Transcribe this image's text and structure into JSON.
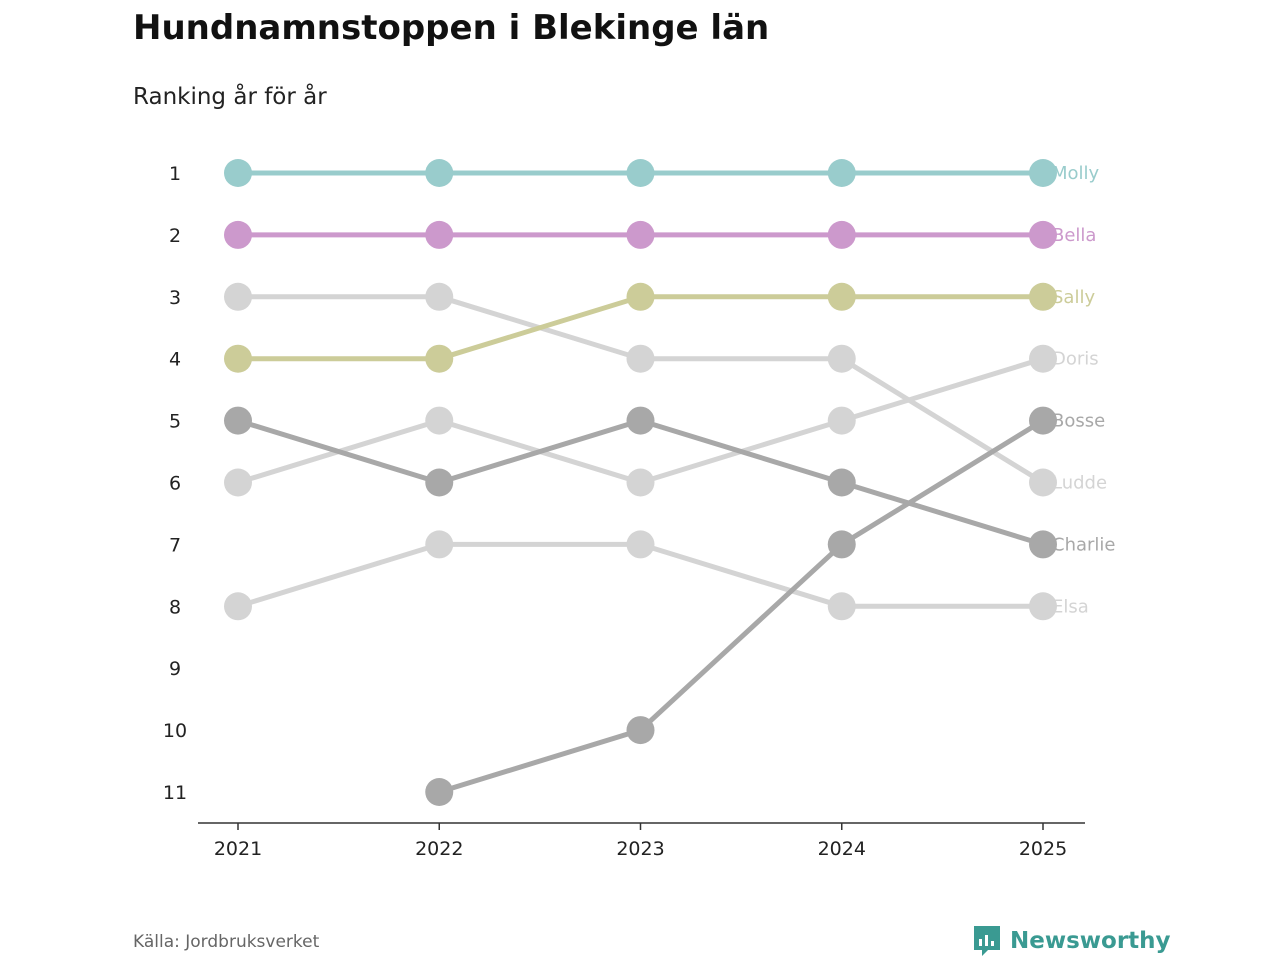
{
  "title": "Hundnamnstoppen i Blekinge län",
  "subtitle": "Ranking år för år",
  "source": "Källa: Jordbruksverket",
  "brand": {
    "name": "Newsworthy",
    "color": "#3a9a92"
  },
  "chart_data": {
    "type": "line",
    "subtype": "bump",
    "x": [
      "2021",
      "2022",
      "2023",
      "2024",
      "2025"
    ],
    "y_ticks": [
      "1",
      "2",
      "3",
      "4",
      "5",
      "6",
      "7",
      "8",
      "9",
      "10",
      "11"
    ],
    "ylim": [
      1,
      11
    ],
    "y_reversed": true,
    "series": [
      {
        "name": "Elsa",
        "color": "#d4d4d4",
        "values": [
          8,
          7,
          7,
          8,
          8
        ]
      },
      {
        "name": "Ludde",
        "color": "#d4d4d4",
        "values": [
          3,
          3,
          4,
          4,
          6
        ]
      },
      {
        "name": "Doris",
        "color": "#d4d4d4",
        "values": [
          6,
          5,
          6,
          5,
          4
        ]
      },
      {
        "name": "Charlie",
        "color": "#a8a8a8",
        "values": [
          5,
          6,
          5,
          6,
          7
        ]
      },
      {
        "name": "Bosse",
        "color": "#a8a8a8",
        "values": [
          null,
          11,
          10,
          7,
          5
        ]
      },
      {
        "name": "Sally",
        "color": "#cccc99",
        "values": [
          4,
          4,
          3,
          3,
          3
        ]
      },
      {
        "name": "Bella",
        "color": "#cc99cc",
        "values": [
          2,
          2,
          2,
          2,
          2
        ]
      },
      {
        "name": "Molly",
        "color": "#99cccc",
        "values": [
          1,
          1,
          1,
          1,
          1
        ]
      }
    ]
  }
}
